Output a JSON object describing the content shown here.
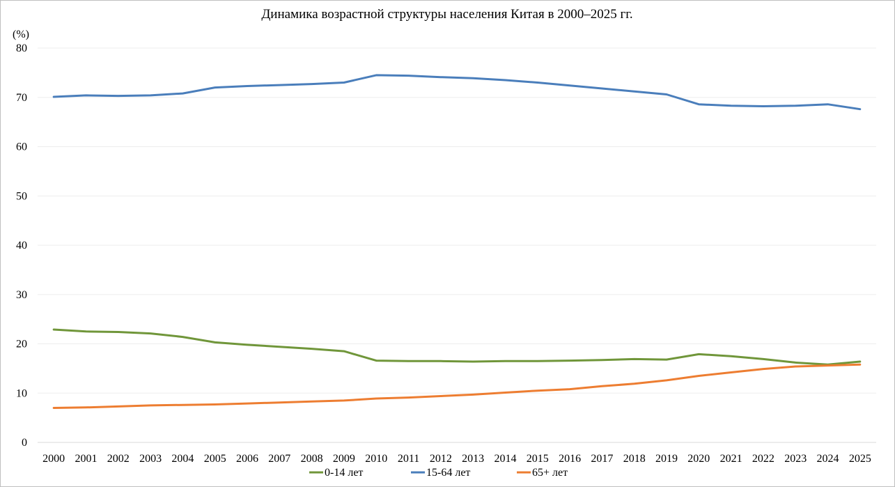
{
  "chart_data": {
    "type": "line",
    "title": "Динамика возрастной структуры населения Китая в 2000–2025 гг.",
    "ylabel": "(%)",
    "xlabel": "",
    "ylim": [
      0,
      80
    ],
    "yticks": [
      "0",
      "10",
      "20",
      "30",
      "40",
      "50",
      "60",
      "70",
      "80"
    ],
    "grid": true,
    "legend": "bottom",
    "categories": [
      "2000",
      "2001",
      "2002",
      "2003",
      "2004",
      "2005",
      "2006",
      "2007",
      "2008",
      "2009",
      "2010",
      "2011",
      "2012",
      "2013",
      "2014",
      "2015",
      "2016",
      "2017",
      "2018",
      "2019",
      "2020",
      "2021",
      "2022",
      "2023",
      "2024",
      "2025"
    ],
    "series": [
      {
        "name": "0-14 лет",
        "color": "#70963a",
        "values": [
          22.9,
          22.5,
          22.4,
          22.1,
          21.4,
          20.3,
          19.8,
          19.4,
          19.0,
          18.5,
          16.6,
          16.5,
          16.5,
          16.4,
          16.5,
          16.5,
          16.6,
          16.7,
          16.9,
          16.8,
          17.9,
          17.5,
          16.9,
          16.2,
          15.8,
          16.4
        ]
      },
      {
        "name": "15-64 лет",
        "color": "#4a7ebb",
        "values": [
          70.1,
          70.4,
          70.3,
          70.4,
          70.8,
          72.0,
          72.3,
          72.5,
          72.7,
          73.0,
          74.5,
          74.4,
          74.1,
          73.9,
          73.5,
          73.0,
          72.4,
          71.8,
          71.2,
          70.6,
          68.6,
          68.3,
          68.2,
          68.3,
          68.6,
          67.6
        ]
      },
      {
        "name": "65+ лет",
        "color": "#ed7d31",
        "values": [
          7.0,
          7.1,
          7.3,
          7.5,
          7.6,
          7.7,
          7.9,
          8.1,
          8.3,
          8.5,
          8.9,
          9.1,
          9.4,
          9.7,
          10.1,
          10.5,
          10.8,
          11.4,
          11.9,
          12.6,
          13.5,
          14.2,
          14.9,
          15.4,
          15.6,
          15.8
        ]
      }
    ]
  }
}
